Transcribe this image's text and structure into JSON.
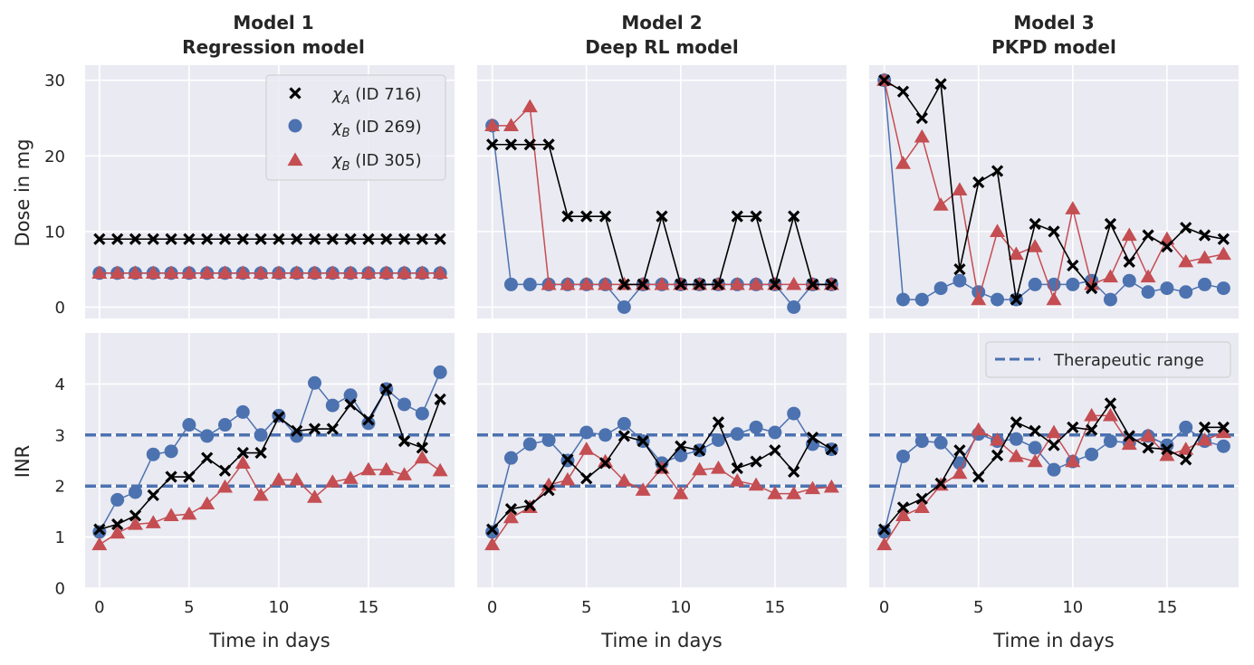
{
  "figure": {
    "ylabel_top": "Dose in mg",
    "ylabel_bottom": "INR",
    "xlabel": "Time in days",
    "legend_series": [
      {
        "symbol": "χ",
        "sub": "A",
        "suffix": " (ID 716)"
      },
      {
        "symbol": "χ",
        "sub": "B",
        "suffix": " (ID 269)"
      },
      {
        "symbol": "χ",
        "sub": "B",
        "suffix": " (ID 305)"
      }
    ],
    "legend_threshold": "Therapeutic range"
  },
  "colors": {
    "background": "#eaeaf2",
    "grid": "#ffffff",
    "series_a": "#000000",
    "series_b1": "#4c72b0",
    "series_b2": "#c44e52",
    "threshold": "#4c72b0"
  },
  "chart_data": [
    {
      "type": "line",
      "panel": "model1-dose",
      "title_line1": "Model 1",
      "title_line2": "Regression model",
      "ylabel": "Dose in mg",
      "xlim": [
        -0.8,
        19.8
      ],
      "ylim": [
        -1.5,
        32
      ],
      "xticks": [],
      "yticks": [
        0,
        10,
        20,
        30
      ],
      "x": [
        0,
        1,
        2,
        3,
        4,
        5,
        6,
        7,
        8,
        9,
        10,
        11,
        12,
        13,
        14,
        15,
        16,
        17,
        18,
        19
      ],
      "series": [
        {
          "name": "χA (ID 716)",
          "marker": "x",
          "values": [
            9,
            9,
            9,
            9,
            9,
            9,
            9,
            9,
            9,
            9,
            9,
            9,
            9,
            9,
            9,
            9,
            9,
            9,
            9,
            9
          ]
        },
        {
          "name": "χB (ID 269)",
          "marker": "o",
          "values": [
            4.5,
            4.5,
            4.5,
            4.5,
            4.5,
            4.5,
            4.5,
            4.5,
            4.5,
            4.5,
            4.5,
            4.5,
            4.5,
            4.5,
            4.5,
            4.5,
            4.5,
            4.5,
            4.5,
            4.5
          ]
        },
        {
          "name": "χB (ID 305)",
          "marker": "^",
          "values": [
            4.5,
            4.5,
            4.5,
            4.5,
            4.5,
            4.5,
            4.5,
            4.5,
            4.5,
            4.5,
            4.5,
            4.5,
            4.5,
            4.5,
            4.5,
            4.5,
            4.5,
            4.5,
            4.5,
            4.5
          ]
        }
      ]
    },
    {
      "type": "line",
      "panel": "model2-dose",
      "title_line1": "Model 2",
      "title_line2": "Deep RL model",
      "xlim": [
        -0.8,
        18.8
      ],
      "ylim": [
        -1.5,
        32
      ],
      "xticks": [],
      "yticks": [],
      "x": [
        0,
        1,
        2,
        3,
        4,
        5,
        6,
        7,
        8,
        9,
        10,
        11,
        12,
        13,
        14,
        15,
        16,
        17,
        18
      ],
      "series": [
        {
          "name": "χA (ID 716)",
          "marker": "x",
          "values": [
            21.5,
            21.5,
            21.5,
            21.5,
            12,
            12,
            12,
            3,
            3,
            12,
            3,
            3,
            3,
            12,
            12,
            3,
            12,
            3,
            3
          ]
        },
        {
          "name": "χB (ID 269)",
          "marker": "o",
          "values": [
            24,
            3,
            3,
            3,
            3,
            3,
            3,
            0,
            3,
            3,
            3,
            3,
            3,
            3,
            3,
            3,
            0,
            3,
            3
          ]
        },
        {
          "name": "χB (ID 305)",
          "marker": "^",
          "values": [
            24,
            24,
            26.5,
            3,
            3,
            3,
            3,
            3,
            3,
            3,
            3,
            3,
            3,
            3,
            3,
            3,
            3,
            3,
            3
          ]
        }
      ]
    },
    {
      "type": "line",
      "panel": "model3-dose",
      "title_line1": "Model 3",
      "title_line2": "PKPD model",
      "xlim": [
        -0.8,
        18.8
      ],
      "ylim": [
        -1.5,
        32
      ],
      "xticks": [],
      "yticks": [],
      "x": [
        0,
        1,
        2,
        3,
        4,
        5,
        6,
        7,
        8,
        9,
        10,
        11,
        12,
        13,
        14,
        15,
        16,
        17,
        18
      ],
      "series": [
        {
          "name": "χA (ID 716)",
          "marker": "x",
          "values": [
            30,
            28.5,
            25,
            29.5,
            5,
            16.5,
            18,
            1,
            11,
            10,
            5.5,
            2.5,
            11,
            6,
            9.5,
            8,
            10.5,
            9.5,
            9
          ]
        },
        {
          "name": "χB (ID 269)",
          "marker": "o",
          "values": [
            30,
            1,
            1,
            2.5,
            3.5,
            2,
            1,
            1,
            3,
            3,
            3,
            3.5,
            1,
            3.5,
            2,
            2.5,
            2,
            3,
            2.5
          ]
        },
        {
          "name": "χB (ID 305)",
          "marker": "^",
          "values": [
            30,
            19,
            22.5,
            13.5,
            15.5,
            1,
            10,
            7,
            8,
            1,
            13,
            3,
            4,
            9.5,
            4,
            9,
            6,
            6.5,
            7
          ]
        }
      ]
    },
    {
      "type": "line",
      "panel": "model1-inr",
      "ylabel": "INR",
      "xlabel": "Time in days",
      "xlim": [
        -0.8,
        19.8
      ],
      "ylim": [
        0,
        5
      ],
      "xticks": [
        0,
        5,
        10,
        15
      ],
      "yticks": [
        0,
        1,
        2,
        3,
        4
      ],
      "therapeutic_range": [
        2,
        3
      ],
      "x": [
        0,
        1,
        2,
        3,
        4,
        5,
        6,
        7,
        8,
        9,
        10,
        11,
        12,
        13,
        14,
        15,
        16,
        17,
        18,
        19
      ],
      "series": [
        {
          "name": "χA (ID 716)",
          "marker": "x",
          "values": [
            1.15,
            1.25,
            1.42,
            1.82,
            2.18,
            2.18,
            2.55,
            2.3,
            2.65,
            2.65,
            3.35,
            3.08,
            3.12,
            3.12,
            3.6,
            3.3,
            3.9,
            2.88,
            2.75,
            3.7
          ]
        },
        {
          "name": "χB (ID 269)",
          "marker": "o",
          "values": [
            1.1,
            1.73,
            1.88,
            2.62,
            2.68,
            3.2,
            2.98,
            3.2,
            3.45,
            3.0,
            3.38,
            2.98,
            4.02,
            3.58,
            3.78,
            3.23,
            3.9,
            3.6,
            3.42,
            4.23
          ]
        },
        {
          "name": "χB (ID 305)",
          "marker": "^",
          "values": [
            0.85,
            1.08,
            1.25,
            1.28,
            1.42,
            1.45,
            1.65,
            1.98,
            2.45,
            1.82,
            2.12,
            2.12,
            1.78,
            2.08,
            2.15,
            2.32,
            2.32,
            2.22,
            2.55,
            2.3
          ]
        }
      ]
    },
    {
      "type": "line",
      "panel": "model2-inr",
      "xlabel": "Time in days",
      "xlim": [
        -0.8,
        18.8
      ],
      "ylim": [
        0,
        5
      ],
      "xticks": [
        0,
        5,
        10,
        15
      ],
      "yticks": [],
      "therapeutic_range": [
        2,
        3
      ],
      "x": [
        0,
        1,
        2,
        3,
        4,
        5,
        6,
        7,
        8,
        9,
        10,
        11,
        12,
        13,
        14,
        15,
        16,
        17,
        18
      ],
      "series": [
        {
          "name": "χA (ID 716)",
          "marker": "x",
          "values": [
            1.15,
            1.55,
            1.62,
            1.92,
            2.52,
            2.15,
            2.45,
            2.98,
            2.88,
            2.35,
            2.78,
            2.7,
            3.25,
            2.35,
            2.48,
            2.7,
            2.28,
            2.95,
            2.72
          ]
        },
        {
          "name": "χB (ID 269)",
          "marker": "o",
          "values": [
            1.1,
            2.55,
            2.82,
            2.9,
            2.5,
            3.05,
            3.0,
            3.22,
            2.88,
            2.45,
            2.6,
            2.7,
            2.9,
            3.02,
            3.15,
            3.05,
            3.42,
            2.82,
            2.72
          ]
        },
        {
          "name": "χB (ID 305)",
          "marker": "^",
          "values": [
            0.85,
            1.38,
            1.58,
            2.02,
            2.12,
            2.72,
            2.48,
            2.1,
            1.92,
            2.35,
            1.85,
            2.32,
            2.35,
            2.1,
            2.02,
            1.85,
            1.85,
            1.95,
            1.98
          ]
        }
      ]
    },
    {
      "type": "line",
      "panel": "model3-inr",
      "xlabel": "Time in days",
      "xlim": [
        -0.8,
        18.8
      ],
      "ylim": [
        0,
        5
      ],
      "xticks": [
        0,
        5,
        10,
        15
      ],
      "yticks": [],
      "therapeutic_range": [
        2,
        3
      ],
      "x": [
        0,
        1,
        2,
        3,
        4,
        5,
        6,
        7,
        8,
        9,
        10,
        11,
        12,
        13,
        14,
        15,
        16,
        17,
        18
      ],
      "series": [
        {
          "name": "χA (ID 716)",
          "marker": "x",
          "values": [
            1.15,
            1.58,
            1.75,
            2.05,
            2.7,
            2.18,
            2.6,
            3.25,
            3.08,
            2.8,
            3.15,
            3.1,
            3.62,
            2.98,
            2.75,
            2.72,
            2.52,
            3.15,
            3.15
          ]
        },
        {
          "name": "χB (ID 269)",
          "marker": "o",
          "values": [
            1.1,
            2.58,
            2.88,
            2.85,
            2.45,
            3.02,
            2.88,
            2.92,
            2.75,
            2.32,
            2.48,
            2.62,
            2.88,
            2.85,
            2.98,
            2.8,
            3.15,
            2.88,
            2.78
          ]
        },
        {
          "name": "χB (ID 305)",
          "marker": "^",
          "values": [
            0.85,
            1.42,
            1.58,
            2.02,
            2.25,
            3.1,
            2.9,
            2.58,
            2.48,
            3.05,
            2.48,
            3.38,
            3.38,
            2.82,
            2.98,
            2.6,
            2.72,
            2.9,
            3.05
          ]
        }
      ]
    }
  ]
}
